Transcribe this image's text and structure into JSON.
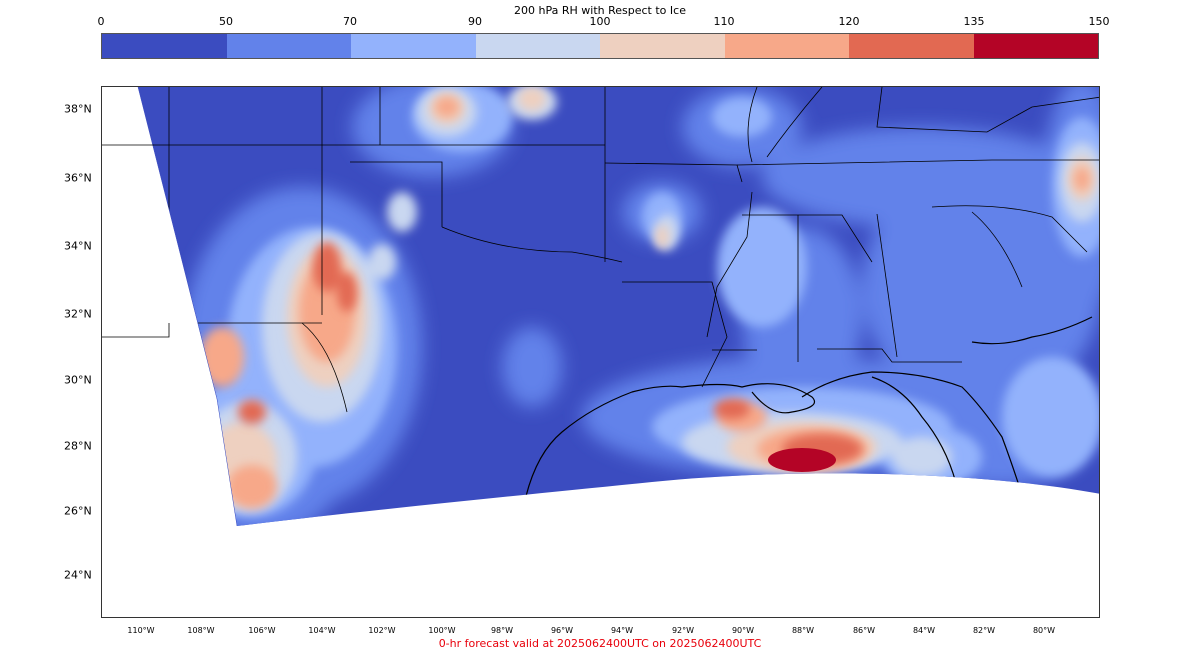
{
  "colorbar": {
    "title": "200 hPa RH with Respect to Ice",
    "ticks": [
      "0",
      "50",
      "70",
      "90",
      "100",
      "110",
      "120",
      "135",
      "150"
    ],
    "colors": [
      "#3b4cc0",
      "#6282ea",
      "#93b2fc",
      "#c9d7f0",
      "#eed0c0",
      "#f7a889",
      "#e26952",
      "#b40426"
    ]
  },
  "map": {
    "lat_labels": [
      "38°N",
      "36°N",
      "34°N",
      "32°N",
      "30°N",
      "28°N",
      "26°N",
      "24°N"
    ],
    "lon_labels": [
      "110°W",
      "108°W",
      "106°W",
      "104°W",
      "102°W",
      "100°W",
      "98°W",
      "96°W",
      "94°W",
      "92°W",
      "90°W",
      "88°W",
      "86°W",
      "84°W",
      "82°W",
      "80°W"
    ],
    "background_color": "#3b4cc0"
  },
  "footer": {
    "text": "0-hr forecast valid at 2025062400UTC on 2025062400UTC",
    "color": "#e8000b"
  }
}
